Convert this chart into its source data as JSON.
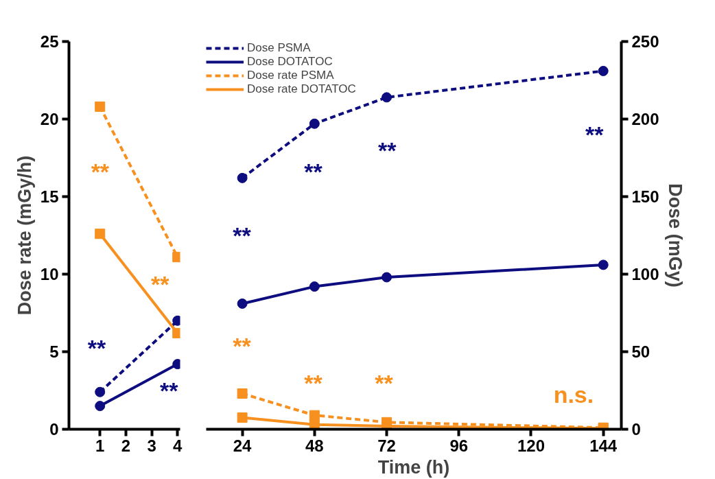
{
  "chart_data": [
    {
      "type": "line",
      "xlim": [
        -0.2,
        4.1
      ],
      "xticks": [
        1,
        2,
        3,
        4
      ],
      "ylim": [
        0,
        25
      ],
      "yticks": [
        0,
        5,
        10,
        15,
        20,
        25
      ],
      "y2lim": [
        0,
        250
      ],
      "ylabel": "Dose rate (mGy/h)",
      "grid": false,
      "series": [
        {
          "color": "#0d0d80",
          "axis": "y2",
          "line_style": "dashed",
          "marker": "circle",
          "x": [
            1,
            4
          ],
          "values": [
            24,
            70
          ]
        },
        {
          "color": "#0d0d80",
          "axis": "y2",
          "line_style": "solid",
          "marker": "circle",
          "x": [
            1,
            4
          ],
          "values": [
            15,
            42
          ]
        },
        {
          "color": "#f7901e",
          "line_style": "dashed",
          "marker": "square",
          "x": [
            1,
            4
          ],
          "values": [
            20.8,
            11.1
          ]
        },
        {
          "color": "#f7901e",
          "line_style": "solid",
          "marker": "square",
          "x": [
            1,
            4
          ],
          "values": [
            12.6,
            6.2
          ]
        }
      ],
      "annotations": [
        "**",
        "**",
        "**",
        "**"
      ]
    },
    {
      "type": "line",
      "xlim": [
        12,
        150
      ],
      "xticks": [
        24,
        48,
        72,
        96,
        120,
        144
      ],
      "ylim": [
        0,
        25
      ],
      "y2lim": [
        0,
        250
      ],
      "y2ticks": [
        0,
        50,
        100,
        150,
        200,
        250
      ],
      "xlabel": "Time (h)",
      "y2label": "Dose (mGy)",
      "grid": false,
      "legend": "top left",
      "series": [
        {
          "name": "Dose PSMA",
          "color": "#0d0d80",
          "axis": "y2",
          "line_style": "dashed",
          "marker": "circle",
          "x": [
            24,
            48,
            72,
            144
          ],
          "values": [
            162,
            197,
            214,
            231
          ]
        },
        {
          "name": "Dose DOTATOC",
          "color": "#0d0d80",
          "axis": "y2",
          "line_style": "solid",
          "marker": "circle",
          "x": [
            24,
            48,
            72,
            144
          ],
          "values": [
            81,
            92,
            98,
            106
          ]
        },
        {
          "name": "Dose rate PSMA",
          "color": "#f7901e",
          "line_style": "dashed",
          "marker": "square",
          "x": [
            24,
            48,
            72,
            144
          ],
          "values": [
            2.3,
            0.9,
            0.45,
            0.1
          ]
        },
        {
          "name": "Dose rate DOTATOC",
          "color": "#f7901e",
          "line_style": "solid",
          "marker": "square",
          "x": [
            24,
            48,
            72,
            144
          ],
          "values": [
            0.75,
            0.3,
            0.2,
            0.05
          ]
        }
      ],
      "annotations": [
        "**",
        "**",
        "**",
        "**",
        "**",
        "**",
        "**",
        "n.s."
      ]
    }
  ]
}
